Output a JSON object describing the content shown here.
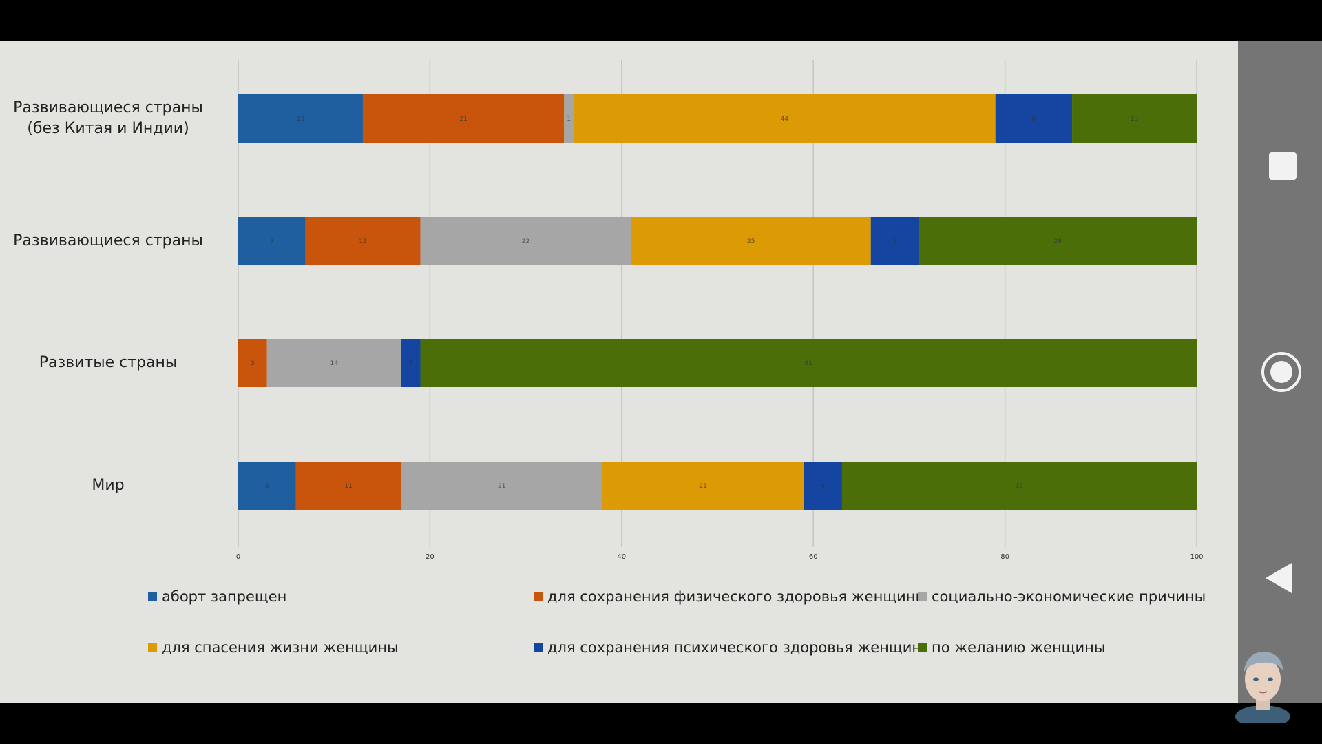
{
  "chart_data": {
    "type": "bar",
    "orientation": "horizontal",
    "stacked": true,
    "categories": [
      [
        "Развивающиеся страны",
        "(без Китая и Индии)"
      ],
      [
        "Развивающиеся страны"
      ],
      [
        "Развитые страны"
      ],
      [
        "Мир"
      ]
    ],
    "series": [
      {
        "name": "аборт запрещен",
        "color": "#1f5fa0",
        "values": [
          13,
          7,
          0,
          6
        ]
      },
      {
        "name": "для сохранения физического здоровья женщины",
        "color": "#c9550c",
        "values": [
          21,
          12,
          3,
          11
        ]
      },
      {
        "name": "социально-экономические причины",
        "color": "#a6a6a6",
        "values": [
          1,
          22,
          14,
          21
        ]
      },
      {
        "name": "для спасения жизни женщины",
        "color": "#dc9a04",
        "values": [
          44,
          25,
          0,
          21
        ]
      },
      {
        "name": "для сохранения психического здоровья женщин",
        "color": "#1445a0",
        "values": [
          8,
          5,
          2,
          4
        ]
      },
      {
        "name": "по желанию женщины",
        "color": "#4c6e08",
        "values": [
          13,
          29,
          81,
          37
        ]
      }
    ],
    "xlim": [
      0,
      100
    ],
    "xticks": [
      0,
      20,
      40,
      60,
      80,
      100
    ],
    "grid": true,
    "legend_position": "bottom",
    "title": "",
    "xlabel": "",
    "ylabel": ""
  },
  "nav": {
    "square_icon": "square-icon",
    "home_icon": "circle-home-icon",
    "back_icon": "triangle-back-icon"
  }
}
